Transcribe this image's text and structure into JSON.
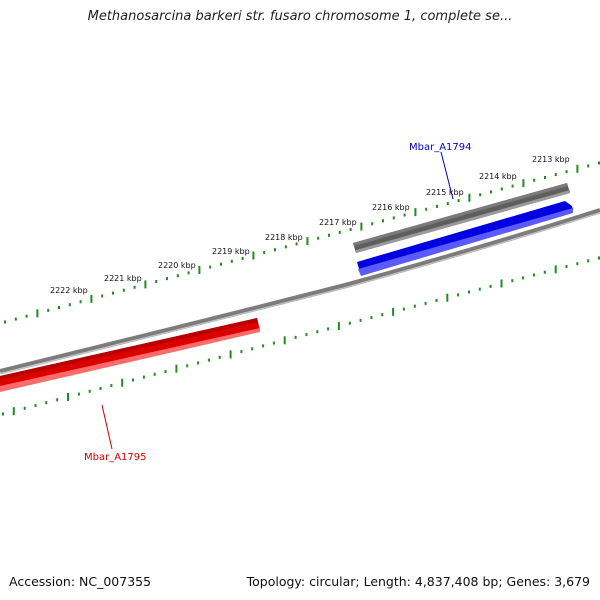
{
  "header": {
    "title": "Methanosarcina barkeri str. fusaro chromosome 1, complete se..."
  },
  "footer": {
    "accession_label": "Accession: NC_007355",
    "summary": "Topology: circular; Length: 4,837,408 bp; Genes: 3,679"
  },
  "map": {
    "tick_labels": [
      "2213 kbp",
      "2214 kbp",
      "2215 kbp",
      "2216 kbp",
      "2217 kbp",
      "2218 kbp",
      "2219 kbp",
      "2220 kbp",
      "2221 kbp",
      "2222 kbp"
    ],
    "features": [
      {
        "name": "Mbar_A1794",
        "strand": "forward",
        "color": "#0000ff"
      },
      {
        "name": "Mbar_A1795",
        "strand": "reverse",
        "color": "#ff0000"
      }
    ],
    "colors": {
      "backbone": "#8a8a8a",
      "forward_feature": "#0000ee",
      "reverse_feature": "#ee0000",
      "gene_bar": "#606060",
      "ticks": "#228b22"
    }
  }
}
